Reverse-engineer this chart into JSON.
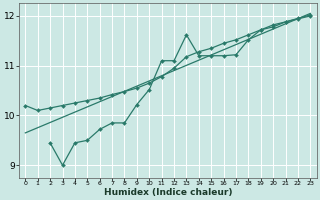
{
  "xlabel": "Humidex (Indice chaleur)",
  "ylabel": "",
  "bg_color": "#cce8e4",
  "grid_color": "#ffffff",
  "line_color": "#2a7a6a",
  "xmin": -0.5,
  "xmax": 23.5,
  "ymin": 8.75,
  "ymax": 12.25,
  "yticks": [
    9,
    10,
    11,
    12
  ],
  "xticks": [
    0,
    1,
    2,
    3,
    4,
    5,
    6,
    7,
    8,
    9,
    10,
    11,
    12,
    13,
    14,
    15,
    16,
    17,
    18,
    19,
    20,
    21,
    22,
    23
  ],
  "line1_x": [
    0,
    1,
    2,
    3,
    4,
    5,
    6,
    7,
    8,
    9,
    10,
    11,
    12,
    13,
    14,
    15,
    16,
    17,
    18,
    19,
    20,
    21,
    22,
    23
  ],
  "line1_y": [
    10.2,
    10.1,
    10.15,
    10.2,
    10.25,
    10.3,
    10.35,
    10.42,
    10.48,
    10.55,
    10.65,
    10.78,
    10.95,
    11.18,
    11.28,
    11.35,
    11.45,
    11.52,
    11.62,
    11.72,
    11.82,
    11.88,
    11.94,
    12.0
  ],
  "line2_x": [
    2,
    3,
    4,
    5,
    6,
    7,
    8,
    9,
    10,
    11,
    12,
    13,
    14,
    15,
    16,
    17,
    18,
    19,
    20,
    21,
    22,
    23
  ],
  "line2_y": [
    9.45,
    9.0,
    9.45,
    9.5,
    9.72,
    9.85,
    9.85,
    10.22,
    10.52,
    11.1,
    11.1,
    11.62,
    11.2,
    11.2,
    11.2,
    11.22,
    11.52,
    11.72,
    11.78,
    11.88,
    11.95,
    12.02
  ],
  "line3_x": [
    0,
    23
  ],
  "line3_y": [
    9.65,
    12.05
  ]
}
